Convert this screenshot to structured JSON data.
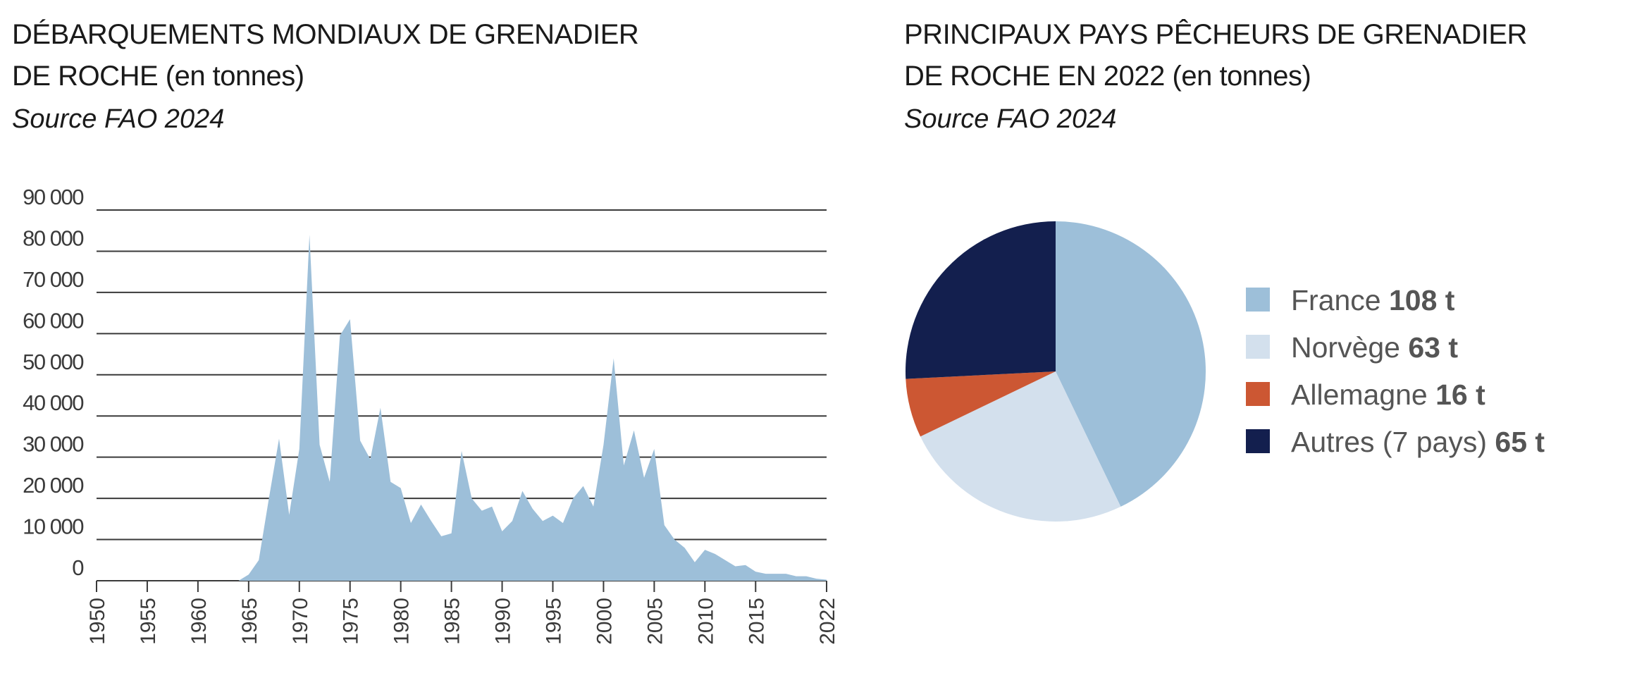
{
  "chart_data": [
    {
      "type": "area",
      "title": "DÉBARQUEMENTS MONDIAUX DE GRENADIER",
      "title_line2": "DE ROCHE (en tonnes)",
      "subtitle": "Source FAO 2024",
      "xlabel": "",
      "ylabel": "",
      "xlim": [
        1950,
        2022
      ],
      "ylim": [
        0,
        90000
      ],
      "grid": true,
      "color": "#9dbfd9",
      "yticks": [
        0,
        10000,
        20000,
        30000,
        40000,
        50000,
        60000,
        70000,
        80000,
        90000
      ],
      "ytick_labels": [
        "0",
        "10 000",
        "20 000",
        "30 000",
        "40 000",
        "50 000",
        "60 000",
        "70 000",
        "80 000",
        "90 000"
      ],
      "xtick_labels": [
        "1950",
        "1955",
        "1960",
        "1965",
        "1970",
        "1975",
        "1980",
        "1985",
        "1990",
        "1995",
        "2000",
        "2005",
        "2010",
        "2015",
        "2022"
      ],
      "xticks": [
        1950,
        1955,
        1960,
        1965,
        1970,
        1975,
        1980,
        1985,
        1990,
        1995,
        2000,
        2005,
        2010,
        2015,
        2022
      ],
      "x": [
        1950,
        1951,
        1952,
        1953,
        1954,
        1955,
        1956,
        1957,
        1958,
        1959,
        1960,
        1961,
        1962,
        1963,
        1964,
        1965,
        1966,
        1967,
        1968,
        1969,
        1970,
        1971,
        1972,
        1973,
        1974,
        1975,
        1976,
        1977,
        1978,
        1979,
        1980,
        1981,
        1982,
        1983,
        1984,
        1985,
        1986,
        1987,
        1988,
        1989,
        1990,
        1991,
        1992,
        1993,
        1994,
        1995,
        1996,
        1997,
        1998,
        1999,
        2000,
        2001,
        2002,
        2003,
        2004,
        2005,
        2006,
        2007,
        2008,
        2009,
        2010,
        2011,
        2012,
        2013,
        2014,
        2015,
        2016,
        2017,
        2018,
        2019,
        2020,
        2021,
        2022
      ],
      "values": [
        0,
        0,
        0,
        0,
        0,
        0,
        0,
        0,
        0,
        0,
        0,
        0,
        0,
        0,
        0,
        1500,
        5000,
        20000,
        34500,
        16000,
        32000,
        84000,
        33000,
        24000,
        59500,
        63500,
        34000,
        29500,
        42000,
        24000,
        22500,
        14000,
        18500,
        14500,
        10800,
        11500,
        31500,
        20000,
        17000,
        18000,
        12000,
        14500,
        21800,
        17500,
        14500,
        15800,
        14000,
        20000,
        23000,
        18000,
        33000,
        54000,
        28000,
        36500,
        25000,
        32000,
        13500,
        10000,
        8000,
        4500,
        7500,
        6500,
        5000,
        3500,
        3800,
        2200,
        1700,
        1700,
        1700,
        1100,
        1100,
        500,
        250
      ]
    },
    {
      "type": "pie",
      "title": "PRINCIPAUX PAYS PÊCHEURS DE GRENADIER",
      "title_line2": "DE ROCHE EN 2022 (en tonnes)",
      "subtitle": "Source FAO 2024",
      "legend_position": "right",
      "slices": [
        {
          "label": "France",
          "value": 108,
          "value_label": "108 t",
          "color": "#9dbfd9"
        },
        {
          "label": "Norvège",
          "value": 63,
          "value_label": "63 t",
          "color": "#d3e0ed"
        },
        {
          "label": "Allemagne",
          "value": 16,
          "value_label": "16 t",
          "color": "#cc5733"
        },
        {
          "label": "Autres (7 pays)",
          "value": 65,
          "value_label": "65 t",
          "color": "#131f4e"
        }
      ]
    }
  ]
}
